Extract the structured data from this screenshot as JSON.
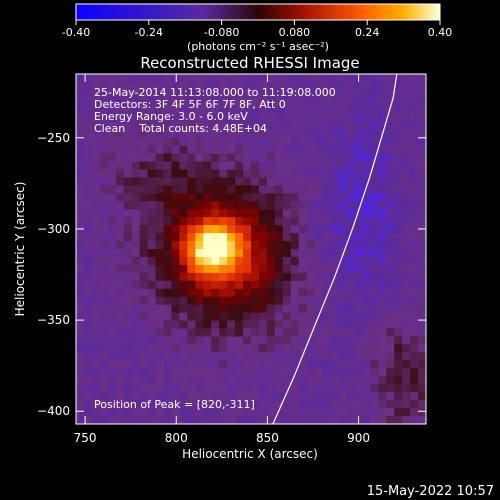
{
  "colorbar": {
    "ticks": [
      "-0.40",
      "-0.24",
      "-0.080",
      "0.080",
      "0.24",
      "0.40"
    ],
    "unit_label": "(photons cm⁻² s⁻¹ asec⁻²)"
  },
  "title": "Reconstructed RHESSI Image",
  "annotations": {
    "time_range": "25-May-2014 11:13:08.000 to 11:19:08.000",
    "detectors": "Detectors: 3F 4F 5F 6F 7F 8F, Att 0",
    "energy": "Energy Range: 3.0 - 6.0 keV",
    "clean": "Clean    Total counts: 4.48E+04",
    "peak": "Position of Peak = [820,-311]"
  },
  "footer_date": "15-May-2022 10:57",
  "colors": {
    "background": "#000000",
    "axis": "#ffffff",
    "limb": "#ffffff",
    "colormap": [
      "#0a00ff",
      "#4a24ff",
      "#5a2a9c",
      "#6c3084",
      "#3a0c10",
      "#800000",
      "#d42800",
      "#ff5a00",
      "#ffb000",
      "#ffffc8"
    ]
  },
  "chart_data": {
    "type": "heatmap",
    "title": "Reconstructed RHESSI Image",
    "xlabel": "Heliocentric X (arcsec)",
    "ylabel": "Heliocentric Y (arcsec)",
    "xlim": [
      745,
      937
    ],
    "ylim": [
      -407,
      -215
    ],
    "xticks": [
      750,
      800,
      850,
      900
    ],
    "yticks": [
      -250,
      -300,
      -350,
      -400
    ],
    "colorbar_range": [
      -0.4,
      0.4
    ],
    "peak_position": [
      820,
      -311
    ],
    "limb_curve": [
      [
        853,
        -407
      ],
      [
        865,
        -380
      ],
      [
        876,
        -353
      ],
      [
        887,
        -326
      ],
      [
        897,
        -299
      ],
      [
        906,
        -272
      ],
      [
        914,
        -245
      ],
      [
        919,
        -228
      ],
      [
        921,
        -215
      ]
    ]
  }
}
